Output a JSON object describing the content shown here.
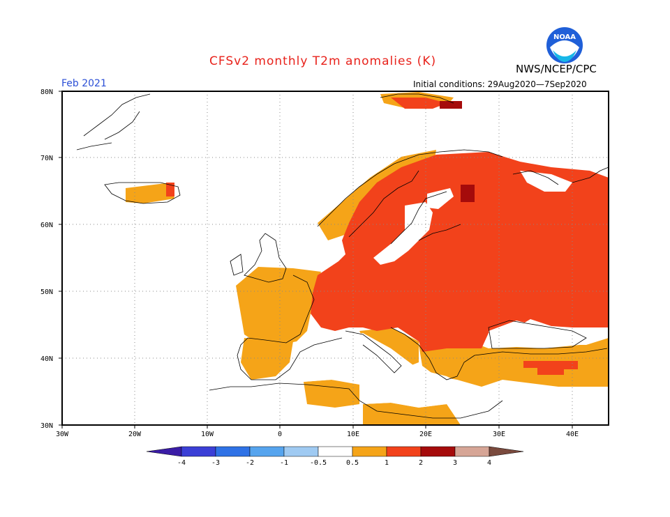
{
  "title": "CFSv2 monthly T2m anomalies (K)",
  "agency": "NWS/NCEP/CPC",
  "month": "Feb 2021",
  "initial_conditions": "Initial conditions: 29Aug2020—7Sep2020",
  "logo_text": "NOAA",
  "lat_ticks": [
    {
      "label": "80N",
      "value": 80
    },
    {
      "label": "70N",
      "value": 70
    },
    {
      "label": "60N",
      "value": 60
    },
    {
      "label": "50N",
      "value": 50
    },
    {
      "label": "40N",
      "value": 40
    },
    {
      "label": "30N",
      "value": 30
    }
  ],
  "lon_ticks": [
    {
      "label": "30W",
      "value": -30
    },
    {
      "label": "20W",
      "value": -20
    },
    {
      "label": "10W",
      "value": -10
    },
    {
      "label": "0",
      "value": 0
    },
    {
      "label": "10E",
      "value": 10
    },
    {
      "label": "20E",
      "value": 20
    },
    {
      "label": "30E",
      "value": 30
    },
    {
      "label": "40E",
      "value": 40
    }
  ],
  "colorbar": {
    "labels": [
      "-4",
      "-3",
      "-2",
      "-1",
      "-0.5",
      "0.5",
      "1",
      "2",
      "3",
      "4"
    ],
    "colors": [
      "#3a1ca6",
      "#3b3fd6",
      "#2f72e6",
      "#56a4ee",
      "#9fcaf2",
      "#ffffff",
      "#f5a418",
      "#f2421b",
      "#a50b0b",
      "#d6a596",
      "#7a4a3d"
    ]
  },
  "colors": {
    "anom_0_5_1": "#f5a418",
    "anom_1_2": "#f2421b",
    "anom_2_3": "#a50b0b",
    "title": "#e8221b",
    "month": "#2b4fd6"
  }
}
